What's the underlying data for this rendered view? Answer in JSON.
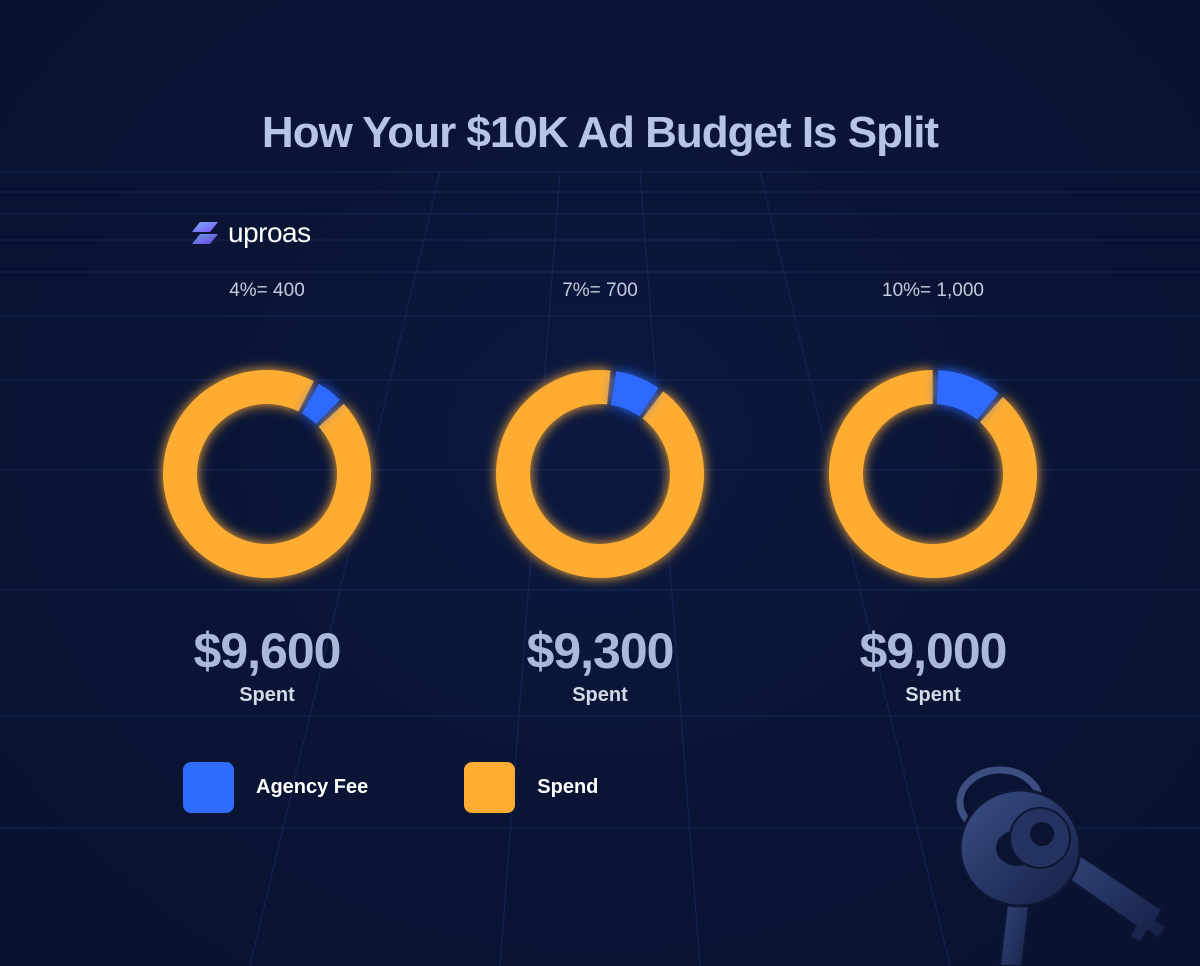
{
  "title": "How Your $10K Ad Budget Is Split",
  "brand": {
    "name": "uproas"
  },
  "colors": {
    "agency_fee": "#2f6bff",
    "spend": "#ffad33"
  },
  "chart_data": {
    "type": "pie",
    "title": "How Your $10K Ad Budget Is Split",
    "total": 10000,
    "legend": {
      "placement": "bottom-left",
      "entries": [
        "Agency Fee",
        "Spend"
      ]
    },
    "charts": [
      {
        "fee_label": "4%= 400",
        "fee_pct": 4,
        "fee_value": 400,
        "spent_value_label": "$9,600",
        "spent_value": 9600,
        "spent_label": "Spent"
      },
      {
        "fee_label": "7%= 700",
        "fee_pct": 7,
        "fee_value": 700,
        "spent_value_label": "$9,300",
        "spent_value": 9300,
        "spent_label": "Spent"
      },
      {
        "fee_label": "10%= 1,000",
        "fee_pct": 10,
        "fee_value": 1000,
        "spent_value_label": "$9,000",
        "spent_value": 9000,
        "spent_label": "Spent"
      }
    ]
  },
  "legend": {
    "items": [
      {
        "label": "Agency Fee",
        "color": "#2f6bff"
      },
      {
        "label": "Spend",
        "color": "#ffad33"
      }
    ]
  },
  "decor": {
    "icon": "keys-icon"
  }
}
